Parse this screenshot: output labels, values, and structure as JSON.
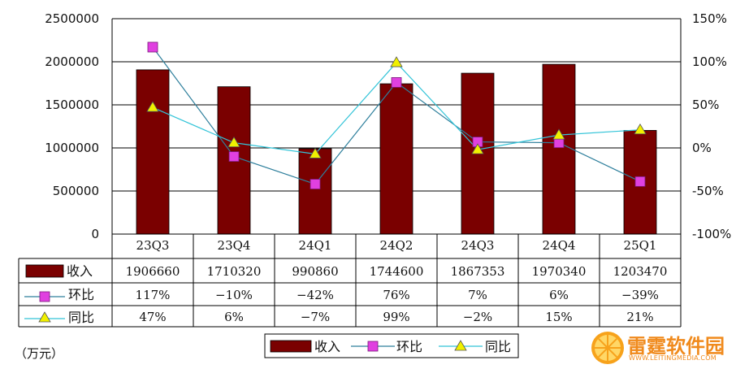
{
  "chart_data": {
    "type": "bar",
    "categories": [
      "23Q3",
      "23Q4",
      "24Q1",
      "24Q2",
      "24Q3",
      "24Q4",
      "25Q1"
    ],
    "series": [
      {
        "name": "收入",
        "type": "bar",
        "axis": "left",
        "values": [
          1906660,
          1710320,
          990860,
          1744600,
          1867353,
          1970340,
          1203470
        ],
        "labels": [
          "1906660",
          "1710320",
          "990860",
          "1744600",
          "1867353",
          "1970340",
          "1203470"
        ]
      },
      {
        "name": "环比",
        "type": "line",
        "axis": "right",
        "marker": "square",
        "values": [
          117,
          -10,
          -42,
          76,
          7,
          6,
          -39
        ],
        "labels": [
          "117%",
          "-10%",
          "-42%",
          "76%",
          "7%",
          "6%",
          "-39%"
        ]
      },
      {
        "name": "同比",
        "type": "line",
        "axis": "right",
        "marker": "triangle",
        "values": [
          47,
          6,
          -7,
          99,
          -2,
          15,
          21
        ],
        "labels": [
          "47%",
          "6%",
          "-7%",
          "99%",
          "-2%",
          "15%",
          "21%"
        ]
      }
    ],
    "left_axis": {
      "min": 0,
      "max": 2500000,
      "ticks": [
        "0",
        "500000",
        "1000000",
        "1500000",
        "2000000",
        "2500000"
      ]
    },
    "right_axis": {
      "min": -100,
      "max": 150,
      "unit": "%",
      "ticks": [
        "-100%",
        "-50%",
        "0%",
        "50%",
        "100%",
        "150%"
      ]
    },
    "gridlines": true,
    "data_table": true,
    "legend_position": "bottom",
    "unit_note": "（万元）"
  },
  "colors": {
    "bar": "#7a0000",
    "mom_marker": "#e040e0",
    "mom_line": "#2e7f9c",
    "yoy_marker": "#f0f000",
    "yoy_line": "#33c4d8"
  },
  "watermark": {
    "text": "雷霆软件园",
    "url": "WWW.LEITINGMEDIA.COM"
  }
}
